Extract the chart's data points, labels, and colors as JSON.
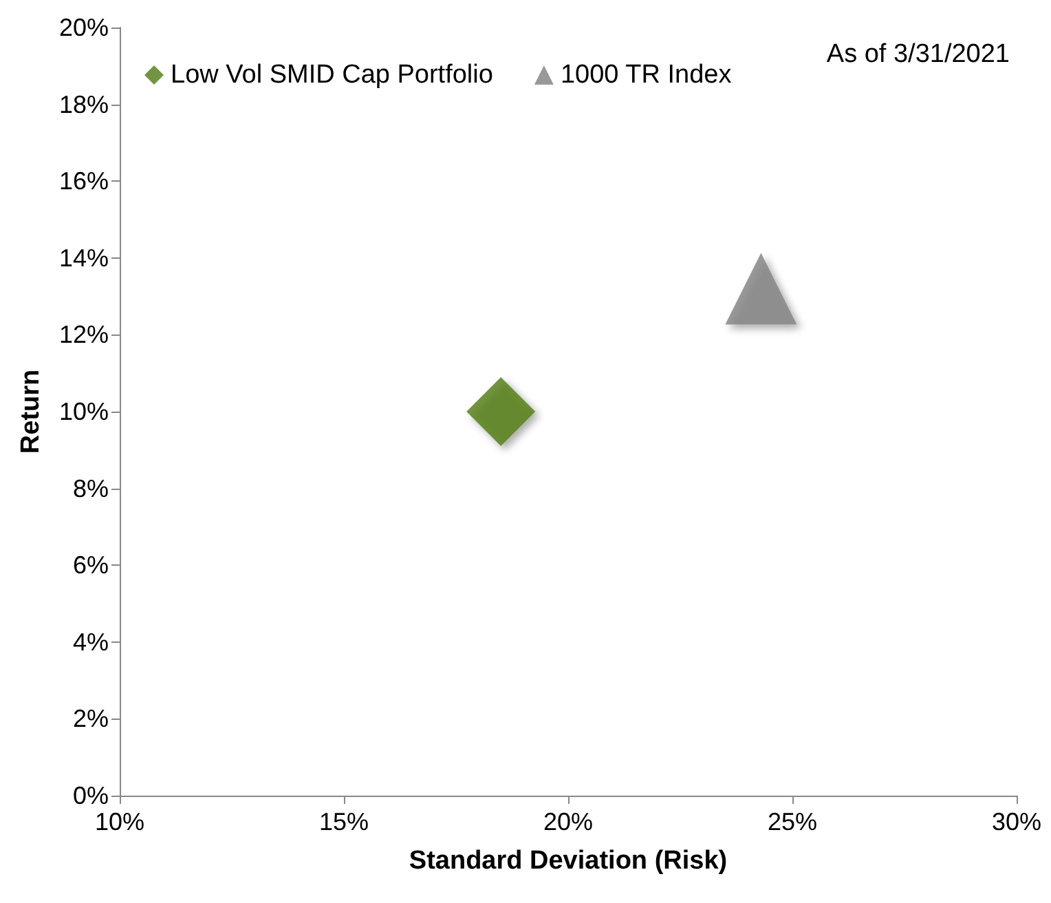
{
  "chart_data": {
    "type": "scatter",
    "xlabel": "Standard Deviation (Risk)",
    "ylabel": "Return",
    "annotations": [
      "As of 3/31/2021"
    ],
    "series": [
      {
        "name": "Low Vol SMID Cap Portfolio",
        "color": "#4f7a14",
        "marker": "diamond",
        "x": [
          18.5
        ],
        "values": [
          10.0
        ]
      },
      {
        "name": "1000 TR Index",
        "color": "#808080",
        "marker": "triangle",
        "x": [
          24.3
        ],
        "values": [
          13.2
        ]
      }
    ],
    "xlim": [
      10,
      30
    ],
    "xticks": [
      {
        "value": 10,
        "label": "10%"
      },
      {
        "value": 15,
        "label": "15%"
      },
      {
        "value": 20,
        "label": "20%"
      },
      {
        "value": 25,
        "label": "25%"
      },
      {
        "value": 30,
        "label": "30%"
      }
    ],
    "ylim": [
      0,
      20
    ],
    "yticks": [
      {
        "value": 0,
        "label": "0%"
      },
      {
        "value": 2,
        "label": "2%"
      },
      {
        "value": 4,
        "label": "4%"
      },
      {
        "value": 6,
        "label": "6%"
      },
      {
        "value": 8,
        "label": "8%"
      },
      {
        "value": 10,
        "label": "10%"
      },
      {
        "value": 12,
        "label": "12%"
      },
      {
        "value": 14,
        "label": "14%"
      },
      {
        "value": 16,
        "label": "16%"
      },
      {
        "value": 18,
        "label": "18%"
      },
      {
        "value": 20,
        "label": "20%"
      }
    ],
    "grid": false,
    "legend": "top"
  }
}
